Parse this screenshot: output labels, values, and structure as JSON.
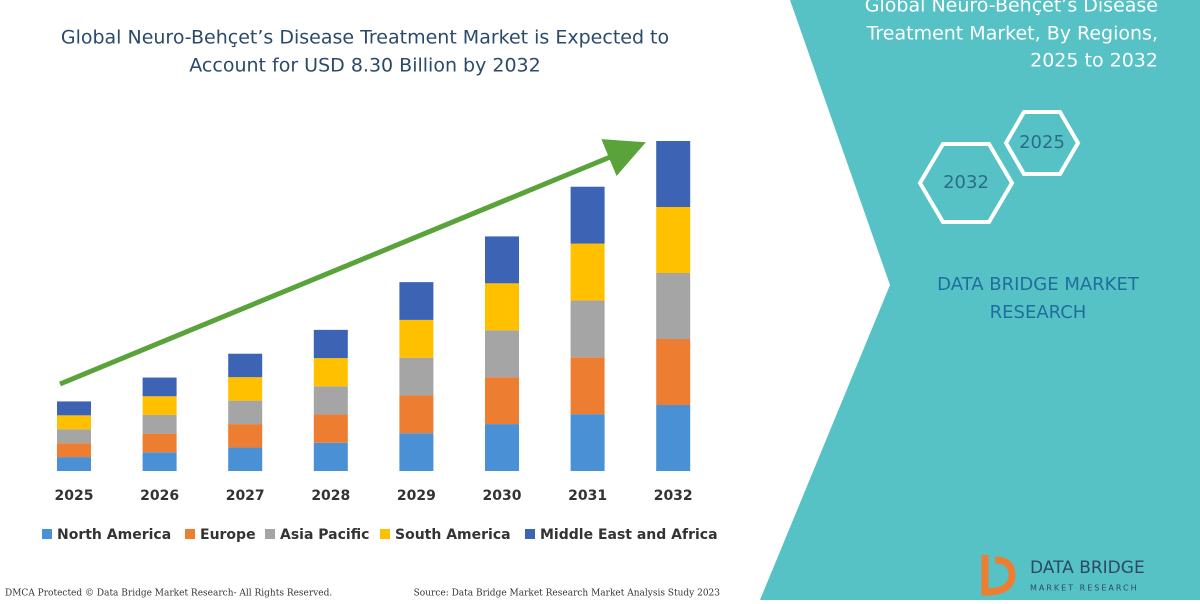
{
  "chart_data": {
    "type": "stacked-bar",
    "title": [
      "Global Neuro-Behçet’s Disease Treatment Market is Expected to",
      "Account for USD 8.30 Billion by 2032"
    ],
    "categories": [
      "2025",
      "2026",
      "2027",
      "2028",
      "2029",
      "2030",
      "2031",
      "2032"
    ],
    "series": [
      {
        "name": "North America",
        "color": "#4a90d4",
        "values": [
          0.35,
          0.47,
          0.59,
          0.71,
          0.95,
          1.18,
          1.43,
          1.66
        ]
      },
      {
        "name": "Europe",
        "color": "#ed7d31",
        "values": [
          0.35,
          0.47,
          0.59,
          0.71,
          0.95,
          1.18,
          1.43,
          1.66
        ]
      },
      {
        "name": "Asia Pacific",
        "color": "#a5a5a5",
        "values": [
          0.35,
          0.47,
          0.59,
          0.71,
          0.95,
          1.18,
          1.43,
          1.66
        ]
      },
      {
        "name": "South America",
        "color": "#ffc000",
        "values": [
          0.35,
          0.47,
          0.59,
          0.71,
          0.95,
          1.18,
          1.43,
          1.66
        ]
      },
      {
        "name": "Middle East and Africa",
        "color": "#3d63b5",
        "values": [
          0.35,
          0.47,
          0.59,
          0.71,
          0.95,
          1.18,
          1.43,
          1.66
        ]
      }
    ]
  },
  "side_panel": {
    "title_lines": [
      "Global Neuro-Behçet’s Disease",
      "Treatment Market, By Regions,",
      "2025 to 2032"
    ],
    "hexagons": [
      "2025",
      "2032"
    ],
    "brand": [
      "DATA BRIDGE MARKET",
      "RESEARCH"
    ]
  },
  "logo": {
    "name": "DATA BRIDGE",
    "tagline": "MARKET RESEARCH"
  },
  "footer": {
    "left": "DMCA Protected © Data Bridge Market Research- All Rights Reserved.",
    "right": "Source: Data Bridge Market Research Market Analysis Study 2023"
  }
}
